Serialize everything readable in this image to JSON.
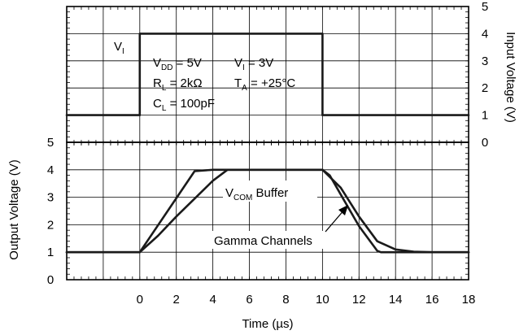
{
  "chart_data": {
    "type": "line",
    "x_axis": {
      "title_main": "Time (",
      "title_unit": "µs",
      "title_close": ")",
      "range": [
        -4,
        18
      ],
      "ticks": [
        0,
        2,
        4,
        6,
        8,
        10,
        12,
        14,
        16,
        18
      ],
      "tick_labels": [
        "0",
        "2",
        "4",
        "6",
        "8",
        "10",
        "12",
        "14",
        "16",
        "18"
      ]
    },
    "input_panel": {
      "y_title": "Input Voltage (V)",
      "y_range": [
        0,
        5
      ],
      "y_ticks": [
        0,
        1,
        2,
        3,
        4,
        5
      ],
      "y_tick_labels": [
        "0",
        "1",
        "2",
        "3",
        "4",
        "5"
      ],
      "grid": true,
      "series": [
        {
          "label_main": "V",
          "label_sub": "I",
          "x": [
            -4,
            0,
            0,
            10,
            10,
            18
          ],
          "y": [
            1,
            1,
            4,
            4,
            1,
            1
          ]
        }
      ],
      "conditions": [
        {
          "a": "V",
          "a_sub": "DD",
          "a_rest": " = 5V",
          "b": "V",
          "b_sub": "I",
          "b_rest": " = 3V"
        },
        {
          "a": "R",
          "a_sub": "L",
          "a_rest": " = 2kΩ",
          "b": "T",
          "b_sub": "A",
          "b_rest": " = +25°C"
        },
        {
          "a": "C",
          "a_sub": "L",
          "a_rest": " = 100pF"
        }
      ]
    },
    "output_panel": {
      "y_title": "Output Voltage (V)",
      "y_range": [
        0,
        5
      ],
      "y_ticks": [
        0,
        1,
        2,
        3,
        4,
        5
      ],
      "y_tick_labels": [
        "0",
        "1",
        "2",
        "3",
        "4",
        "5"
      ],
      "grid": true,
      "series": [
        {
          "label_main": "V",
          "label_sub": "COM",
          "label_rest": " Buffer",
          "x": [
            -4,
            0,
            3,
            4,
            5,
            10,
            11,
            12,
            13,
            14,
            15,
            16,
            18
          ],
          "y": [
            1,
            1,
            3.95,
            4,
            4,
            4,
            3.35,
            2.3,
            1.4,
            1.1,
            1.02,
            1,
            1
          ]
        },
        {
          "label": "Gamma Channels",
          "x": [
            -4,
            0,
            1,
            2,
            3,
            4,
            4.8,
            10,
            10.4,
            11,
            12,
            13,
            13.2,
            14,
            18
          ],
          "y": [
            1,
            1,
            1.6,
            2.3,
            2.95,
            3.6,
            4,
            4,
            3.8,
            3.1,
            1.95,
            1.05,
            1,
            1,
            1
          ]
        }
      ]
    }
  }
}
